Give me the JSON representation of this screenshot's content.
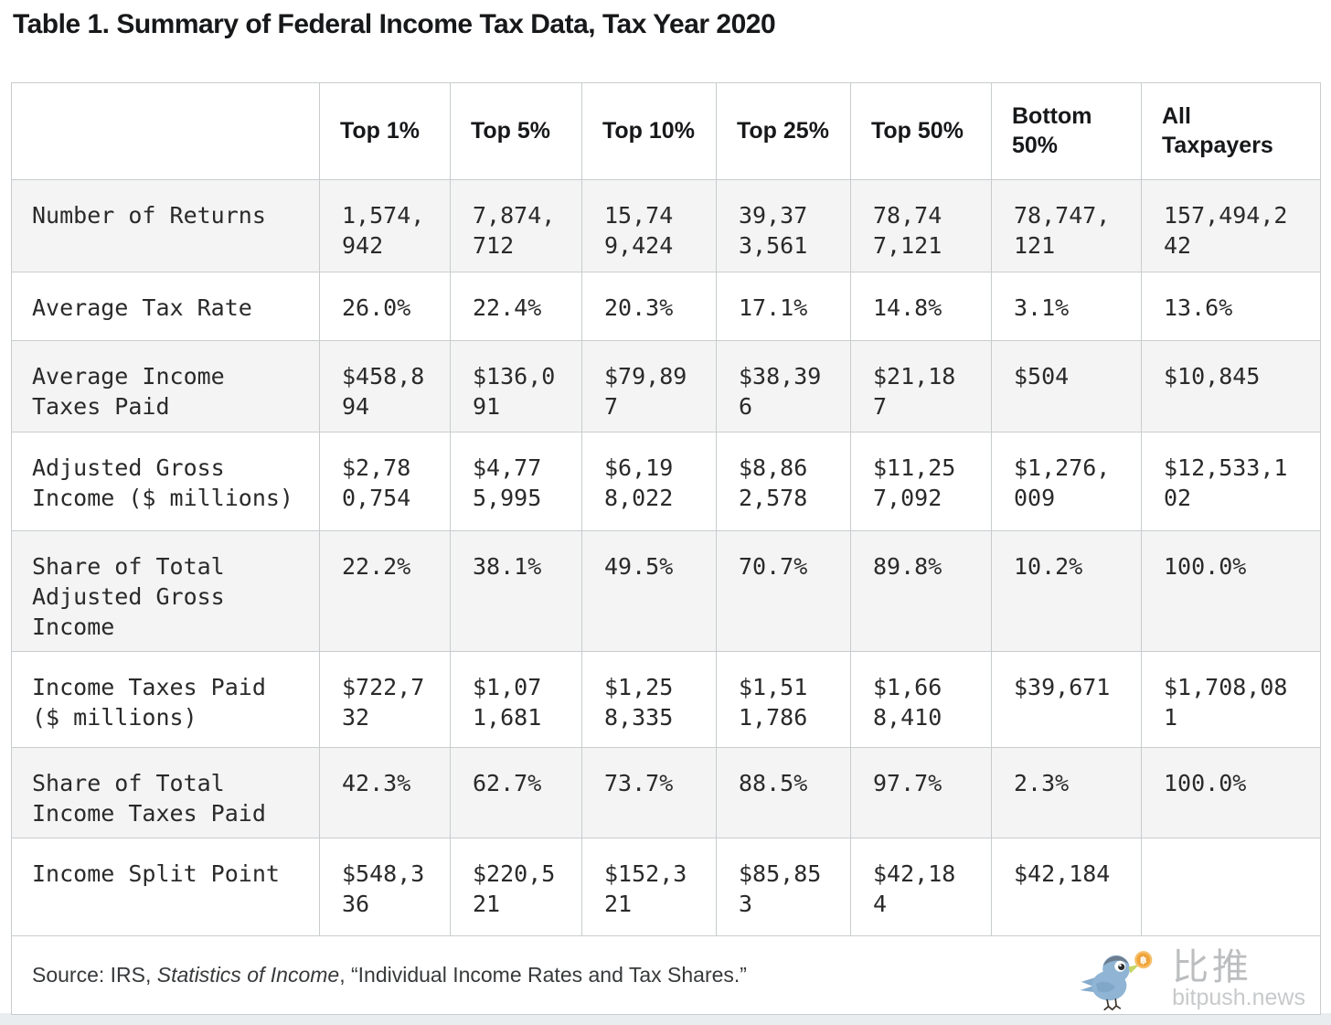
{
  "chart_data": {
    "type": "table",
    "title": "Table 1. Summary of Federal Income Tax Data, Tax Year 2020",
    "column_headers": [
      "",
      "Top 1%",
      "Top 5%",
      "Top 10%",
      "Top 25%",
      "Top 50%",
      "Bottom 50%",
      "All Taxpayers"
    ],
    "rows": [
      {
        "label": "Number of Returns",
        "values": [
          "1,574,942",
          "7,874,712",
          "15,749,424",
          "39,373,561",
          "78,747,121",
          "78,747,121",
          "157,494,242"
        ]
      },
      {
        "label": "Average Tax Rate",
        "values": [
          "26.0%",
          "22.4%",
          "20.3%",
          "17.1%",
          "14.8%",
          "3.1%",
          "13.6%"
        ]
      },
      {
        "label": "Average Income Taxes Paid",
        "values": [
          "$458,894",
          "$136,091",
          "$79,897",
          "$38,396",
          "$21,187",
          "$504",
          "$10,845"
        ]
      },
      {
        "label": "Adjusted Gross Income ($ millions)",
        "values": [
          "$2,780,754",
          "$4,775,995",
          "$6,198,022",
          "$8,862,578",
          "$11,257,092",
          "$1,276,009",
          "$12,533,102"
        ]
      },
      {
        "label": "Share of Total Adjusted Gross Income",
        "values": [
          "22.2%",
          "38.1%",
          "49.5%",
          "70.7%",
          "89.8%",
          "10.2%",
          "100.0%"
        ]
      },
      {
        "label": "Income Taxes Paid ($ millions)",
        "values": [
          "$722,732",
          "$1,071,681",
          "$1,258,335",
          "$1,511,786",
          "$1,668,410",
          "$39,671",
          "$1,708,081"
        ]
      },
      {
        "label": "Share of Total Income Taxes Paid",
        "values": [
          "42.3%",
          "62.7%",
          "73.7%",
          "88.5%",
          "97.7%",
          "2.3%",
          "100.0%"
        ]
      },
      {
        "label": "Income Split Point",
        "values": [
          "$548,336",
          "$220,521",
          "$152,321",
          "$85,853",
          "$42,184",
          "$42,184",
          ""
        ]
      }
    ]
  },
  "footer": {
    "source_prefix": "Source: IRS, ",
    "source_italic": "Statistics of Income",
    "source_suffix": ", “Individual Income Rates and Tax Shares.”"
  },
  "logo": {
    "brand_cn": "比推",
    "brand_domain": "bitpush.news",
    "coin_symbol": "₿",
    "bird_color": "#8ab1d2",
    "bird_crown_color": "#64778a",
    "coin_color": "#ef9f2f",
    "text_color": "#b8babc"
  }
}
